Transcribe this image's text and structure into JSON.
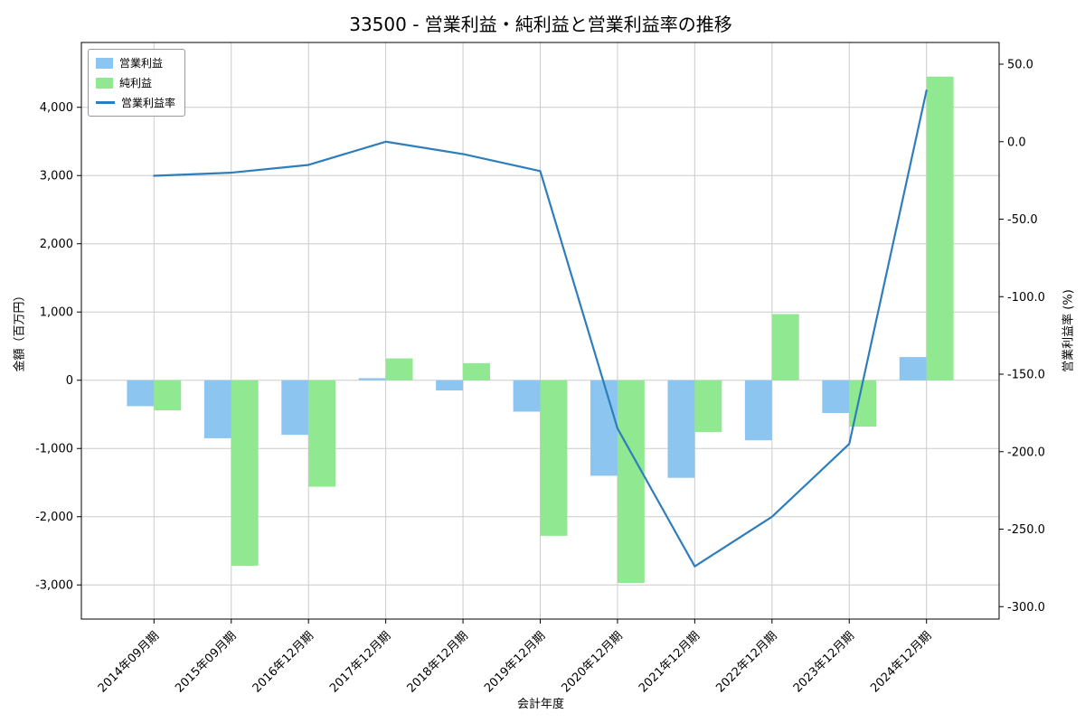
{
  "colors": {
    "operating_profit_bar": "#8CC5F0",
    "net_profit_bar": "#90E890",
    "margin_line": "#2E7EBC",
    "grid": "#CCCCCC",
    "axis": "#000000",
    "background": "#FFFFFF"
  },
  "chart_data": {
    "type": "bar+line",
    "title": "33500 - 営業利益・純利益と営業利益率の推移",
    "xlabel": "会計年度",
    "ylabel_left": "金額（百万円）",
    "ylabel_right": "営業利益率 (%)",
    "grid": true,
    "legend_position": "top-left",
    "categories": [
      "2014年09月期",
      "2015年09月期",
      "2016年12月期",
      "2017年12月期",
      "2018年12月期",
      "2019年12月期",
      "2020年12月期",
      "2021年12月期",
      "2022年12月期",
      "2023年12月期",
      "2024年12月期"
    ],
    "series": [
      {
        "name": "営業利益",
        "type": "bar",
        "axis": "left",
        "color": "#8CC5F0",
        "values": [
          -380,
          -850,
          -800,
          30,
          -150,
          -460,
          -1400,
          -1430,
          -880,
          -480,
          340
        ]
      },
      {
        "name": "純利益",
        "type": "bar",
        "axis": "left",
        "color": "#90E890",
        "values": [
          -440,
          -2720,
          -1560,
          320,
          250,
          -2280,
          -2970,
          -760,
          970,
          -680,
          4450
        ]
      },
      {
        "name": "営業利益率",
        "type": "line",
        "axis": "right",
        "color": "#2E7EBC",
        "values": [
          -22,
          -20,
          -15,
          0,
          -8,
          -19,
          -185,
          -274,
          -242,
          -195,
          33
        ]
      }
    ],
    "left_axis": {
      "min": -3500,
      "max": 4950,
      "ticks": [
        -3000,
        -2000,
        -1000,
        0,
        1000,
        2000,
        3000,
        4000
      ],
      "tick_labels": [
        "-3,000",
        "-2,000",
        "-1,000",
        "0",
        "1,000",
        "2,000",
        "3,000",
        "4,000"
      ]
    },
    "right_axis": {
      "min": -308,
      "max": 64,
      "ticks": [
        -300,
        -250,
        -200,
        -150,
        -100,
        -50,
        0,
        50
      ],
      "tick_labels": [
        "-300.0",
        "-250.0",
        "-200.0",
        "-150.0",
        "-100.0",
        "-50.0",
        "0.0",
        "50.0"
      ]
    }
  }
}
